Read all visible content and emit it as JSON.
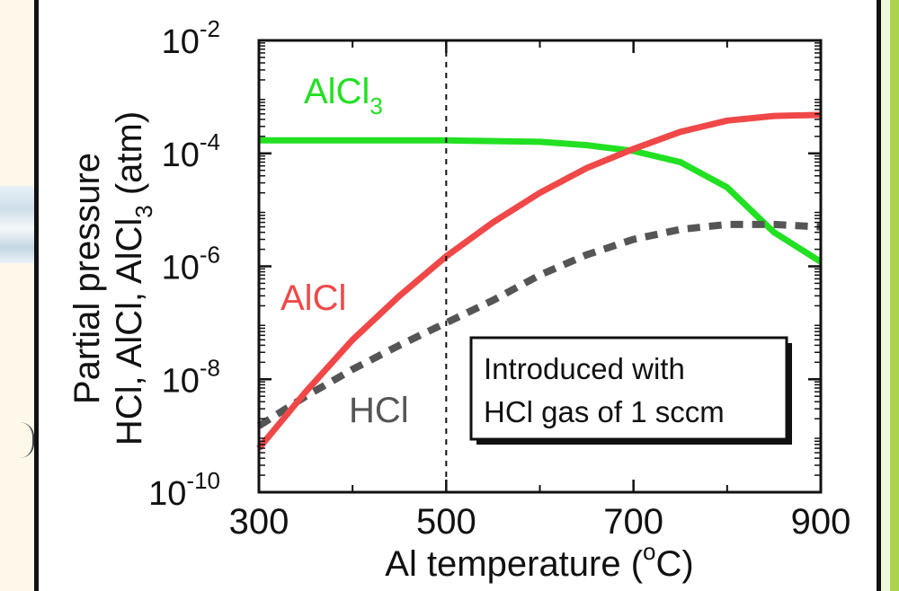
{
  "chart_data": {
    "type": "line",
    "title": "",
    "xlabel": "Al temperature (°C)",
    "ylabel_line1": "Partial pressure",
    "ylabel_line2": "HCl, AlCl, AlCl3 (atm)",
    "x_scale": "linear",
    "y_scale": "log",
    "xlim": [
      300,
      900
    ],
    "ylim": [
      1e-10,
      0.01
    ],
    "x_ticks": [
      300,
      500,
      700,
      900
    ],
    "x_tick_labels": [
      "300",
      "500",
      "700",
      "900"
    ],
    "y_tick_exponents": [
      -10,
      -8,
      -6,
      -4,
      -2
    ],
    "y_tick_base": "10",
    "grid": false,
    "vertical_reference_line": 500,
    "annotation_box": [
      "Introduced with",
      "HCl gas of 1 sccm"
    ],
    "series": [
      {
        "name": "AlCl3",
        "color": "#22e022",
        "style": "solid",
        "x": [
          300,
          400,
          500,
          600,
          650,
          700,
          750,
          800,
          850,
          900
        ],
        "y": [
          0.00017,
          0.00017,
          0.00017,
          0.00016,
          0.00014,
          0.00011,
          7e-05,
          2.5e-05,
          4e-06,
          1.2e-06
        ]
      },
      {
        "name": "AlCl",
        "color": "#f04848",
        "style": "solid",
        "x": [
          300,
          350,
          400,
          450,
          500,
          550,
          600,
          650,
          700,
          750,
          800,
          850,
          900
        ],
        "y": [
          6e-10,
          6e-09,
          5e-08,
          3e-07,
          1.5e-06,
          6e-06,
          2e-05,
          5.5e-05,
          0.00012,
          0.00024,
          0.00038,
          0.00046,
          0.00048
        ]
      },
      {
        "name": "HCl",
        "color": "#555555",
        "style": "dashed",
        "x": [
          300,
          350,
          400,
          450,
          500,
          550,
          600,
          650,
          700,
          750,
          800,
          850,
          900
        ],
        "y": [
          1.5e-09,
          5e-09,
          1.5e-08,
          4e-08,
          1e-07,
          2.5e-07,
          7e-07,
          1.6e-06,
          3e-06,
          4.5e-06,
          5.5e-06,
          5.5e-06,
          5e-06
        ]
      }
    ],
    "series_labels": [
      {
        "text": "AlCl",
        "sub": "3",
        "color": "#22e022"
      },
      {
        "text": "AlCl",
        "sub": "",
        "color": "#f04848"
      },
      {
        "text": "HCl",
        "sub": "",
        "color": "#555555"
      }
    ]
  }
}
